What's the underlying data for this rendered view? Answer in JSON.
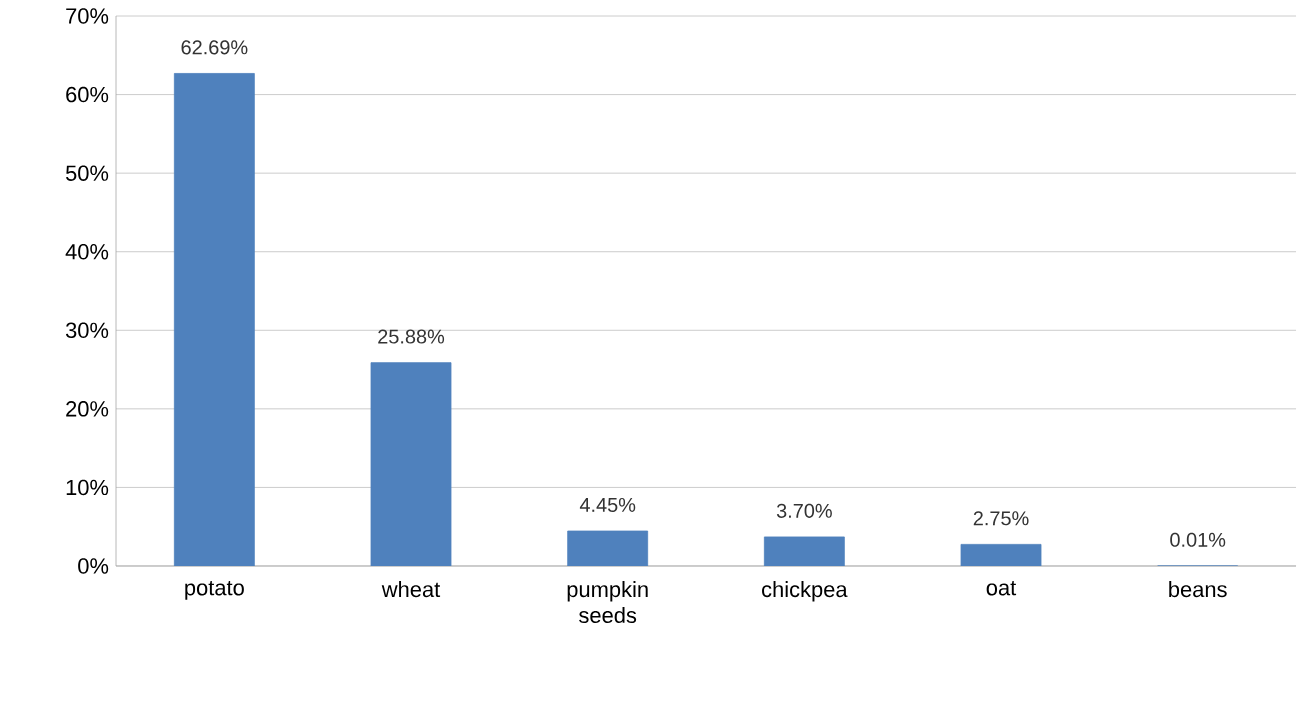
{
  "chart_data": {
    "type": "bar",
    "categories": [
      "potato",
      "wheat",
      "pumpkin seeds",
      "chickpea",
      "oat",
      "beans"
    ],
    "values": [
      62.69,
      25.88,
      4.45,
      3.7,
      2.75,
      0.01
    ],
    "value_labels": [
      "62.69%",
      "25.88%",
      "4.45%",
      "3.70%",
      "2.75%",
      "0.01%"
    ],
    "color": "#4f81bd",
    "ylim": [
      0,
      70
    ],
    "yticks": [
      {
        "value": 0,
        "label": "0%"
      },
      {
        "value": 10,
        "label": "10%"
      },
      {
        "value": 20,
        "label": "20%"
      },
      {
        "value": 30,
        "label": "30%"
      },
      {
        "value": 40,
        "label": "40%"
      },
      {
        "value": 50,
        "label": "50%"
      },
      {
        "value": 60,
        "label": "60%"
      },
      {
        "value": 70,
        "label": "70%"
      }
    ],
    "grid": "y"
  }
}
